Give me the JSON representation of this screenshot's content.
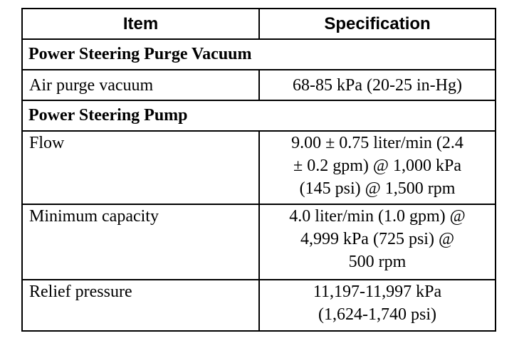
{
  "table": {
    "headers": {
      "item": "Item",
      "specification": "Specification"
    },
    "sections": [
      {
        "title": "Power Steering Purge Vacuum",
        "rows": [
          {
            "item": "Air purge vacuum",
            "spec_lines": [
              "68-85 kPa (20-25 in-Hg)"
            ]
          }
        ]
      },
      {
        "title": "Power Steering Pump",
        "rows": [
          {
            "item": "Flow",
            "spec_lines": [
              "9.00 ± 0.75 liter/min (2.4",
              "± 0.2 gpm) @ 1,000 kPa",
              "(145 psi) @ 1,500 rpm"
            ]
          },
          {
            "item": "Minimum capacity",
            "spec_lines": [
              "4.0 liter/min (1.0 gpm) @",
              "4,999 kPa (725 psi) @",
              "500 rpm"
            ]
          },
          {
            "item": "Relief pressure",
            "spec_lines": [
              "11,197-11,997 kPa",
              "(1,624-1,740 psi)"
            ]
          }
        ]
      }
    ]
  }
}
